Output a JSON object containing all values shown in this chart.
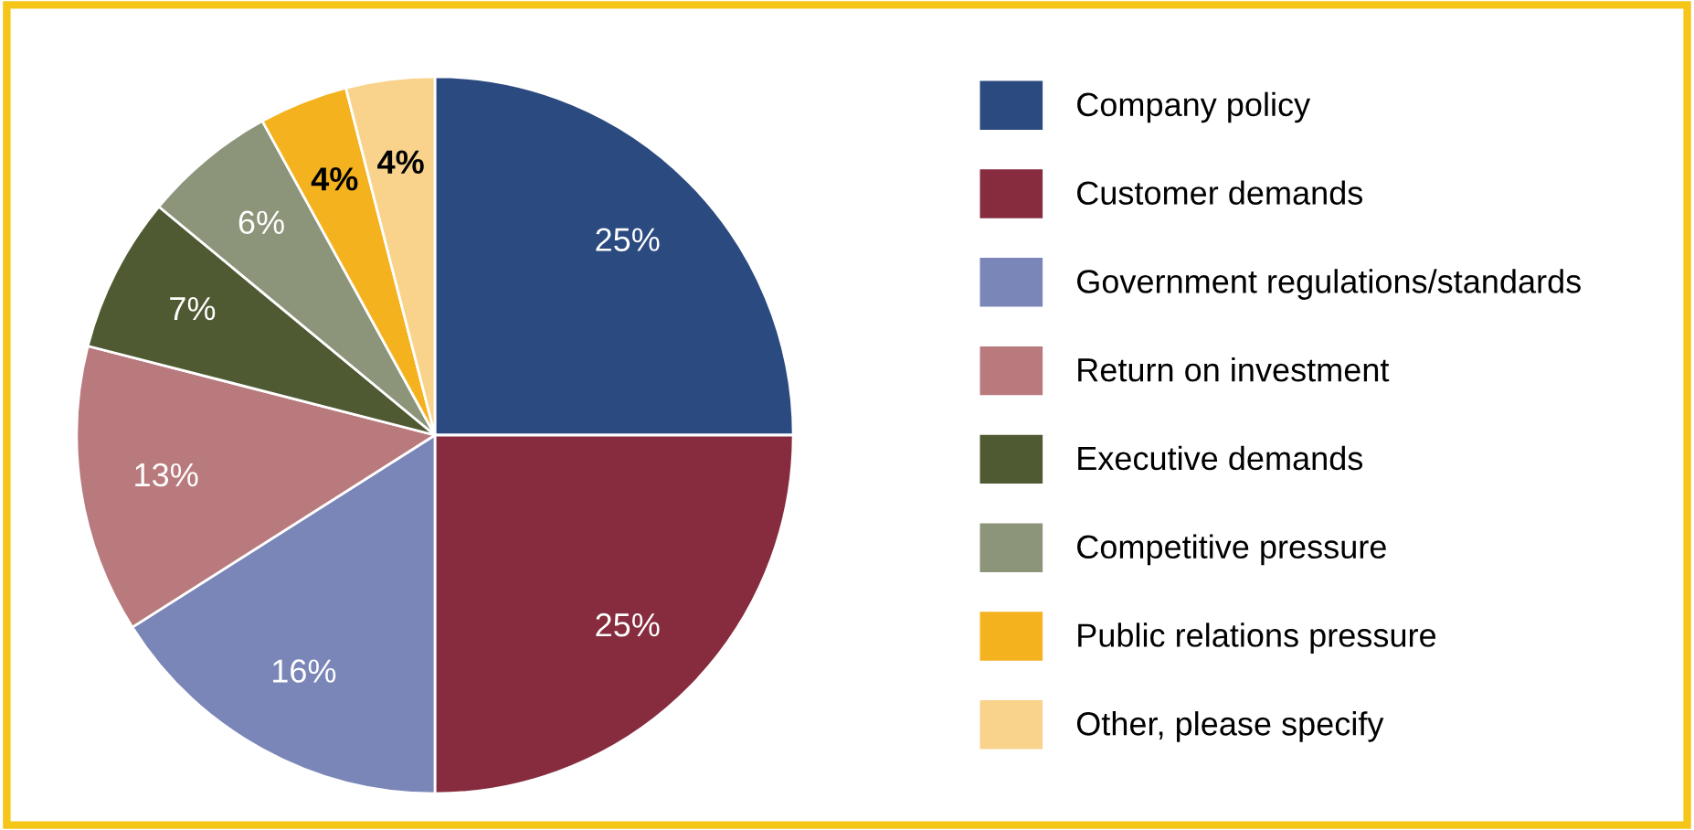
{
  "chart_data": {
    "type": "pie",
    "categories": [
      "Company policy",
      "Customer demands",
      "Government regulations/standards",
      "Return on investment",
      "Executive demands",
      "Competitive pressure",
      "Public relations pressure",
      "Other, please specify"
    ],
    "values": [
      25,
      25,
      16,
      13,
      7,
      6,
      4,
      4
    ],
    "value_labels": [
      "25%",
      "25%",
      "16%",
      "13%",
      "7%",
      "6%",
      "4%",
      "4%"
    ],
    "colors": [
      "#2b4a80",
      "#862c3e",
      "#7b86b8",
      "#b97a7e",
      "#4f5a33",
      "#8c947a",
      "#f5b21f",
      "#f9d38c"
    ],
    "legend": "right"
  }
}
